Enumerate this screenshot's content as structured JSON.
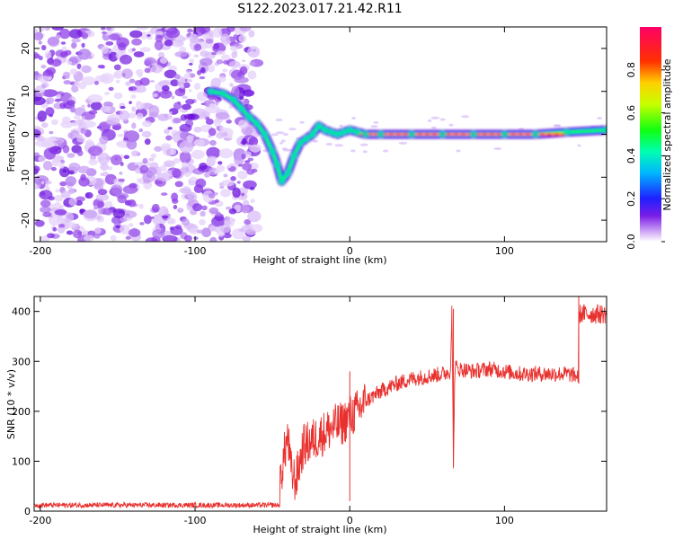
{
  "title": "S122.2023.017.21.42.R11",
  "chart_data": [
    {
      "type": "heatmap",
      "xlabel": "Height of straight line (km)",
      "ylabel": "Frequency (Hz)",
      "xlim": [
        -204,
        166
      ],
      "ylim": [
        -25,
        25
      ],
      "xticks": [
        -200,
        -100,
        0,
        100
      ],
      "yticks": [
        -20,
        -10,
        0,
        10,
        20
      ],
      "noise_region_x": [
        -204,
        -60
      ],
      "ridge": {
        "x": [
          -90,
          -82,
          -75,
          -70,
          -65,
          -60,
          -55,
          -50,
          -47,
          -44,
          -40,
          -36,
          -32,
          -28,
          -24,
          -20,
          -16,
          -12,
          -8,
          -4,
          0,
          5,
          10,
          20,
          40,
          60,
          80,
          100,
          120,
          140,
          166
        ],
        "y": [
          10,
          9.5,
          8,
          6,
          4,
          2.5,
          0,
          -4,
          -7,
          -11,
          -9,
          -5,
          -2,
          -1,
          0,
          2,
          1,
          0.5,
          0,
          0.5,
          1,
          0.5,
          0,
          0,
          0,
          0,
          0,
          0,
          0,
          0.5,
          1
        ]
      },
      "colorbar": {
        "label": "Normalized spectral amplitude",
        "range": [
          0,
          1
        ],
        "ticks": [
          0.0,
          0.2,
          0.4,
          0.6,
          0.8
        ]
      }
    },
    {
      "type": "line",
      "xlabel": "Height of straight line (km)",
      "ylabel": "SNR (10 * v/v)",
      "xlim": [
        -204,
        166
      ],
      "ylim": [
        0,
        430
      ],
      "xticks": [
        -200,
        -100,
        0,
        100
      ],
      "yticks": [
        0,
        100,
        200,
        300,
        400
      ],
      "color": "#e8312e",
      "series": [
        {
          "name": "SNR",
          "x": [
            -204,
            -180,
            -150,
            -120,
            -100,
            -80,
            -62,
            -50,
            -45,
            -42,
            -40,
            -38,
            -35,
            -30,
            -25,
            -20,
            -15,
            -10,
            -5,
            0,
            5,
            10,
            20,
            30,
            40,
            50,
            60,
            65,
            66,
            67,
            68,
            70,
            80,
            90,
            100,
            110,
            120,
            130,
            140,
            148,
            149,
            150,
            155,
            160,
            166
          ],
          "y": [
            12,
            12,
            12,
            12,
            12,
            12,
            14,
            20,
            60,
            120,
            150,
            80,
            60,
            130,
            140,
            150,
            160,
            170,
            175,
            190,
            200,
            220,
            240,
            255,
            265,
            270,
            275,
            280,
            400,
            100,
            290,
            285,
            280,
            285,
            280,
            275,
            275,
            275,
            275,
            270,
            380,
            400,
            395,
            400,
            410
          ]
        }
      ],
      "spikes": [
        {
          "x": 67,
          "high": 405,
          "low": 90
        },
        {
          "x": 0,
          "high": 280,
          "low": 20
        },
        {
          "x": 148,
          "high": 430,
          "low": 255
        }
      ]
    }
  ]
}
